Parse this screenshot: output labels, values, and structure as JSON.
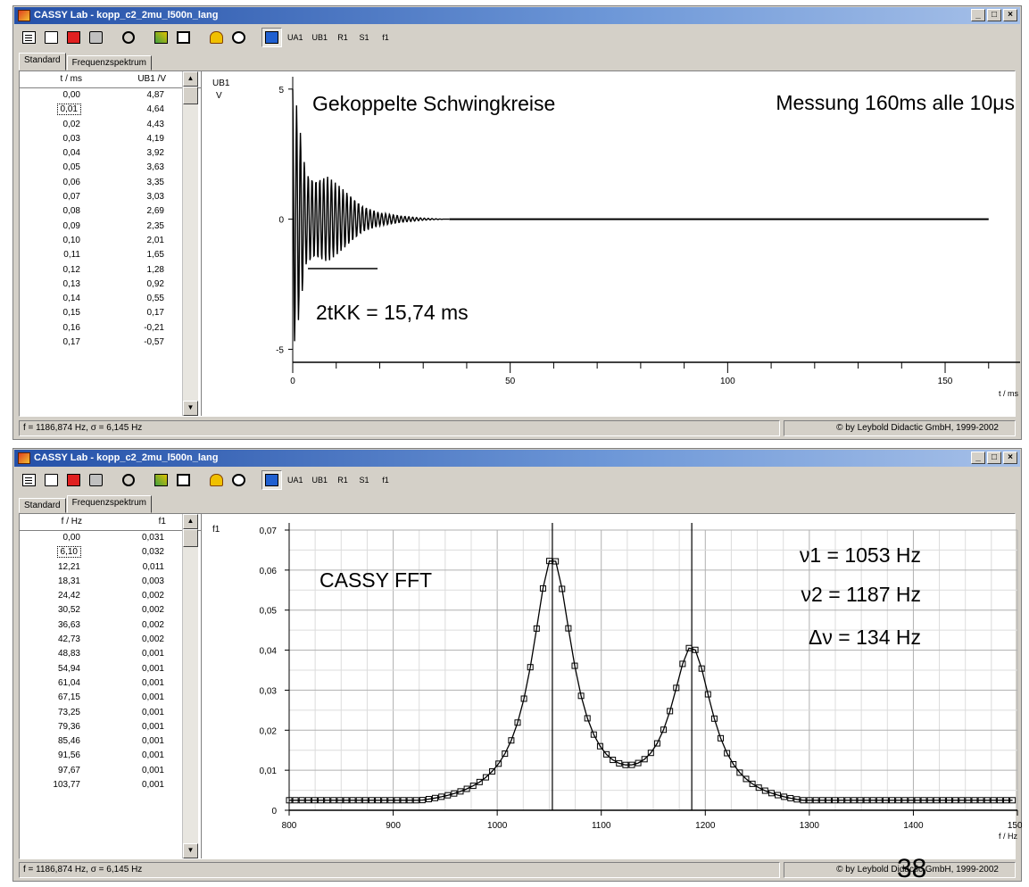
{
  "window1": {
    "title": "CASSY Lab - kopp_c2_2mu_l500n_lang",
    "tabs": [
      "Standard",
      "Frequenzspektrum"
    ],
    "active_tab": 0,
    "table": {
      "headers": [
        "t / ms",
        "U<sub>B1</sub> / V"
      ],
      "header_text": [
        "t / ms",
        "UB1 /V"
      ],
      "rows": [
        [
          "0,00",
          "4,87"
        ],
        [
          "0,01",
          "4,64"
        ],
        [
          "0,02",
          "4,43"
        ],
        [
          "0,03",
          "4,19"
        ],
        [
          "0,04",
          "3,92"
        ],
        [
          "0,05",
          "3,63"
        ],
        [
          "0,06",
          "3,35"
        ],
        [
          "0,07",
          "3,03"
        ],
        [
          "0,08",
          "2,69"
        ],
        [
          "0,09",
          "2,35"
        ],
        [
          "0,10",
          "2,01"
        ],
        [
          "0,11",
          "1,65"
        ],
        [
          "0,12",
          "1,28"
        ],
        [
          "0,13",
          "0,92"
        ],
        [
          "0,14",
          "0,55"
        ],
        [
          "0,15",
          "0,17"
        ],
        [
          "0,16",
          "-0,21"
        ],
        [
          "0,17",
          "-0,57"
        ]
      ]
    },
    "status_left": "f = 1186,874 Hz,  σ = 6,145 Hz",
    "status_right": "© by Leybold Didactic GmbH, 1999-2002"
  },
  "window2": {
    "title": "CASSY Lab - kopp_c2_2mu_l500n_lang",
    "tabs": [
      "Standard",
      "Frequenzspektrum"
    ],
    "active_tab": 1,
    "table": {
      "header_text": [
        "f / Hz",
        "f1"
      ],
      "rows": [
        [
          "0,00",
          "0,031"
        ],
        [
          "6,10",
          "0,032"
        ],
        [
          "12,21",
          "0,011"
        ],
        [
          "18,31",
          "0,003"
        ],
        [
          "24,42",
          "0,002"
        ],
        [
          "30,52",
          "0,002"
        ],
        [
          "36,63",
          "0,002"
        ],
        [
          "42,73",
          "0,002"
        ],
        [
          "48,83",
          "0,001"
        ],
        [
          "54,94",
          "0,001"
        ],
        [
          "61,04",
          "0,001"
        ],
        [
          "67,15",
          "0,001"
        ],
        [
          "73,25",
          "0,001"
        ],
        [
          "79,36",
          "0,001"
        ],
        [
          "85,46",
          "0,001"
        ],
        [
          "91,56",
          "0,001"
        ],
        [
          "97,67",
          "0,001"
        ],
        [
          "103,77",
          "0,001"
        ]
      ]
    },
    "status_left": "f = 1186,874 Hz,  σ = 6,145 Hz",
    "status_right": "© by Leybold Didactic GmbH, 1999-2002"
  },
  "toolbar": {
    "icons": [
      "new-icon",
      "open-icon",
      "save-icon",
      "print-icon",
      "stopwatch-icon",
      "tools-icon",
      "display-icon",
      "bell-icon",
      "record-icon",
      "measure-icon"
    ],
    "channels": [
      "UA1",
      "UB1",
      "R1",
      "S1",
      "f1"
    ]
  },
  "chart_data": [
    {
      "type": "line",
      "title": "Gekoppelte Schwingkreise",
      "subtitle": "Messung  160ms  alle 10μs",
      "annotation": "2tKK =  15,74 ms",
      "ylabel": "UB1",
      "yunit": "V",
      "xlabel": "t / ms",
      "xlim": [
        0,
        166
      ],
      "ylim": [
        -5.5,
        5.2
      ],
      "xticks": [
        0,
        50,
        100,
        150
      ],
      "yticks": [
        -5,
        0,
        5
      ],
      "signal": "damped beat oscillation, amplitude ~5 V decaying to 0 by ~35 ms, flat 0 until 160 ms",
      "envelope": {
        "x": [
          0,
          1,
          3,
          5,
          8,
          12,
          16,
          20,
          25,
          30,
          35
        ],
        "y": [
          5.0,
          4.3,
          1.8,
          1.5,
          1.65,
          1.1,
          0.5,
          0.25,
          0.12,
          0.04,
          0.0
        ]
      }
    },
    {
      "type": "line",
      "title": "CASSY  FFT",
      "annotations": [
        "ν1 =  1053 Hz",
        "ν2 =  1187 Hz",
        "Δν = 134 Hz"
      ],
      "ylabel": "f1",
      "xlabel": "f / Hz",
      "xlim": [
        800,
        1500
      ],
      "ylim": [
        0,
        0.07
      ],
      "xticks": [
        800,
        900,
        1000,
        1100,
        1200,
        1300,
        1400,
        1500
      ],
      "yticks": [
        0,
        0.01,
        0.02,
        0.03,
        0.04,
        0.05,
        0.06,
        0.07
      ],
      "ytick_labels": [
        "0",
        "0,01",
        "0,02",
        "0,03",
        "0,04",
        "0,05",
        "0,06",
        "0,07"
      ],
      "markers": [
        1053,
        1187
      ],
      "peaks": [
        {
          "f": 1053,
          "amp": 0.062
        },
        {
          "f": 1187,
          "amp": 0.039
        }
      ],
      "minimum": {
        "f": 1125,
        "amp": 0.003
      }
    }
  ],
  "page_number": "38"
}
